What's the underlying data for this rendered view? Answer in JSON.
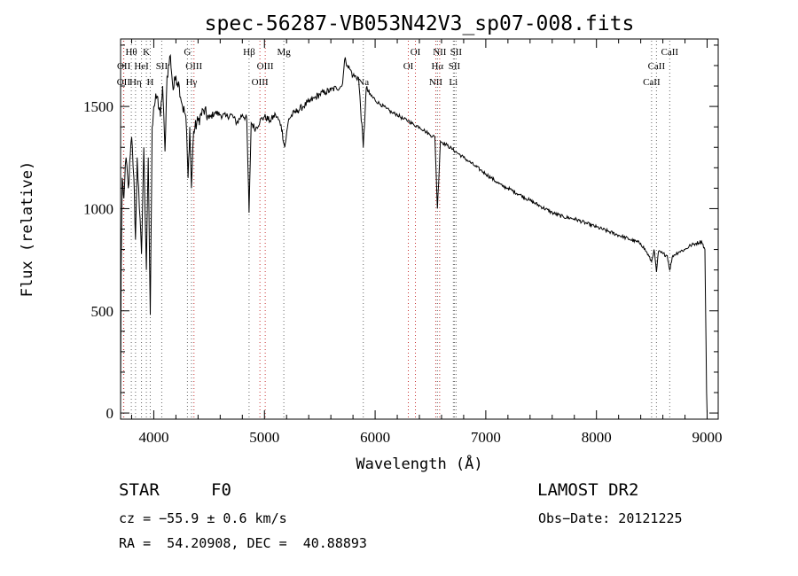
{
  "chart_data": {
    "type": "line",
    "title": "spec-56287-VB053N42V3_sp07-008.fits",
    "xlabel": "Wavelength (Å)",
    "ylabel": "Flux (relative)",
    "xlim": [
      3700,
      9100
    ],
    "ylim": [
      -30,
      1830
    ],
    "x_ticks": [
      4000,
      5000,
      6000,
      7000,
      8000,
      9000
    ],
    "y_ticks": [
      0,
      500,
      1000,
      1500
    ],
    "series": [
      {
        "color": "#000000",
        "points": [
          [
            3700,
            20
          ],
          [
            3705,
            700
          ],
          [
            3715,
            1150
          ],
          [
            3730,
            1050
          ],
          [
            3750,
            1250
          ],
          [
            3770,
            1100
          ],
          [
            3800,
            1350
          ],
          [
            3820,
            1150
          ],
          [
            3835,
            850
          ],
          [
            3850,
            1250
          ],
          [
            3870,
            1000
          ],
          [
            3889,
            780
          ],
          [
            3910,
            1300
          ],
          [
            3933,
            700
          ],
          [
            3950,
            1250
          ],
          [
            3968,
            480
          ],
          [
            3985,
            1400
          ],
          [
            4000,
            1500
          ],
          [
            4030,
            1550
          ],
          [
            4060,
            1450
          ],
          [
            4080,
            1600
          ],
          [
            4101,
            1280
          ],
          [
            4120,
            1650
          ],
          [
            4150,
            1750
          ],
          [
            4175,
            1580
          ],
          [
            4200,
            1650
          ],
          [
            4230,
            1600
          ],
          [
            4260,
            1500
          ],
          [
            4290,
            1450
          ],
          [
            4310,
            1150
          ],
          [
            4325,
            1400
          ],
          [
            4340,
            1100
          ],
          [
            4360,
            1380
          ],
          [
            4400,
            1430
          ],
          [
            4450,
            1480
          ],
          [
            4500,
            1440
          ],
          [
            4550,
            1470
          ],
          [
            4600,
            1460
          ],
          [
            4650,
            1450
          ],
          [
            4700,
            1460
          ],
          [
            4750,
            1420
          ],
          [
            4800,
            1460
          ],
          [
            4840,
            1440
          ],
          [
            4861,
            980
          ],
          [
            4880,
            1420
          ],
          [
            4920,
            1390
          ],
          [
            4960,
            1430
          ],
          [
            5000,
            1450
          ],
          [
            5050,
            1430
          ],
          [
            5100,
            1460
          ],
          [
            5150,
            1410
          ],
          [
            5183,
            1300
          ],
          [
            5220,
            1440
          ],
          [
            5270,
            1470
          ],
          [
            5300,
            1480
          ],
          [
            5350,
            1500
          ],
          [
            5400,
            1520
          ],
          [
            5450,
            1540
          ],
          [
            5500,
            1560
          ],
          [
            5550,
            1570
          ],
          [
            5600,
            1580
          ],
          [
            5650,
            1590
          ],
          [
            5700,
            1600
          ],
          [
            5730,
            1740
          ],
          [
            5750,
            1700
          ],
          [
            5775,
            1680
          ],
          [
            5800,
            1650
          ],
          [
            5850,
            1640
          ],
          [
            5893,
            1300
          ],
          [
            5920,
            1590
          ],
          [
            5950,
            1560
          ],
          [
            6000,
            1530
          ],
          [
            6050,
            1510
          ],
          [
            6100,
            1490
          ],
          [
            6150,
            1470
          ],
          [
            6200,
            1460
          ],
          [
            6250,
            1440
          ],
          [
            6300,
            1430
          ],
          [
            6350,
            1410
          ],
          [
            6400,
            1400
          ],
          [
            6450,
            1380
          ],
          [
            6500,
            1360
          ],
          [
            6540,
            1350
          ],
          [
            6563,
            1000
          ],
          [
            6590,
            1330
          ],
          [
            6650,
            1310
          ],
          [
            6700,
            1290
          ],
          [
            6750,
            1270
          ],
          [
            6800,
            1250
          ],
          [
            6850,
            1230
          ],
          [
            6900,
            1210
          ],
          [
            6950,
            1190
          ],
          [
            7000,
            1170
          ],
          [
            7050,
            1150
          ],
          [
            7100,
            1130
          ],
          [
            7150,
            1110
          ],
          [
            7200,
            1100
          ],
          [
            7300,
            1070
          ],
          [
            7400,
            1040
          ],
          [
            7500,
            1010
          ],
          [
            7600,
            980
          ],
          [
            7700,
            960
          ],
          [
            7800,
            950
          ],
          [
            7900,
            930
          ],
          [
            8000,
            910
          ],
          [
            8100,
            890
          ],
          [
            8200,
            870
          ],
          [
            8300,
            850
          ],
          [
            8400,
            830
          ],
          [
            8450,
            790
          ],
          [
            8498,
            740
          ],
          [
            8520,
            800
          ],
          [
            8542,
            690
          ],
          [
            8560,
            790
          ],
          [
            8600,
            780
          ],
          [
            8640,
            770
          ],
          [
            8662,
            700
          ],
          [
            8690,
            770
          ],
          [
            8750,
            790
          ],
          [
            8800,
            800
          ],
          [
            8850,
            820
          ],
          [
            8900,
            830
          ],
          [
            8950,
            840
          ],
          [
            8980,
            800
          ],
          [
            8995,
            100
          ],
          [
            9000,
            0
          ]
        ]
      }
    ],
    "line_markers": [
      {
        "wavelength": 3727,
        "label": "OII",
        "row": 2,
        "color": "#c83232"
      },
      {
        "wavelength": 3729,
        "label": "OII",
        "row": 1,
        "color": "#c83232"
      },
      {
        "wavelength": 3797,
        "label": "Hθ",
        "row": 0,
        "color": "#646464"
      },
      {
        "wavelength": 3835,
        "label": "Hη",
        "row": 2,
        "color": "#646464"
      },
      {
        "wavelength": 3889,
        "label": "HeI",
        "row": 1,
        "color": "#646464"
      },
      {
        "wavelength": 3933,
        "label": "K",
        "row": 0,
        "color": "#646464"
      },
      {
        "wavelength": 3968,
        "label": "H",
        "row": 2,
        "color": "#646464"
      },
      {
        "wavelength": 4072,
        "label": "SII",
        "row": 1,
        "color": "#646464"
      },
      {
        "wavelength": 4304,
        "label": "G",
        "row": 0,
        "color": "#646464"
      },
      {
        "wavelength": 4341,
        "label": "Hγ",
        "row": 2,
        "color": "#646464"
      },
      {
        "wavelength": 4363,
        "label": "OIII",
        "row": 1,
        "color": "#c83232"
      },
      {
        "wavelength": 4861,
        "label": "Hβ",
        "row": 0,
        "color": "#646464"
      },
      {
        "wavelength": 4959,
        "label": "OIII",
        "row": 2,
        "color": "#c83232"
      },
      {
        "wavelength": 5007,
        "label": "OIII",
        "row": 1,
        "color": "#c83232"
      },
      {
        "wavelength": 5175,
        "label": "Mg",
        "row": 0,
        "color": "#646464"
      },
      {
        "wavelength": 5893,
        "label": "Na",
        "row": 2,
        "color": "#646464"
      },
      {
        "wavelength": 6300,
        "label": "OI",
        "row": 1,
        "color": "#c83232"
      },
      {
        "wavelength": 6364,
        "label": "OI",
        "row": 0,
        "color": "#c83232"
      },
      {
        "wavelength": 6548,
        "label": "NII",
        "row": 2,
        "color": "#c83232"
      },
      {
        "wavelength": 6563,
        "label": "Hα",
        "row": 1,
        "color": "#646464"
      },
      {
        "wavelength": 6583,
        "label": "NII",
        "row": 0,
        "color": "#c83232"
      },
      {
        "wavelength": 6707,
        "label": "Li",
        "row": 2,
        "color": "#646464"
      },
      {
        "wavelength": 6716,
        "label": "SII",
        "row": 1,
        "color": "#646464"
      },
      {
        "wavelength": 6731,
        "label": "SII",
        "row": 0,
        "color": "#646464"
      },
      {
        "wavelength": 8498,
        "label": "CaII",
        "row": 2,
        "color": "#646464"
      },
      {
        "wavelength": 8542,
        "label": "CaII",
        "row": 1,
        "color": "#646464"
      },
      {
        "wavelength": 8662,
        "label": "CaII",
        "row": 0,
        "color": "#646464"
      }
    ]
  },
  "info": {
    "class_label": "STAR",
    "subclass_label": "F0",
    "survey": "LAMOST DR2",
    "redshift": "cz = −55.9 ± 0.6 km/s",
    "obs_date": "Obs−Date: 20121225",
    "coords": "RA =  54.20908, DEC =  40.88893"
  }
}
